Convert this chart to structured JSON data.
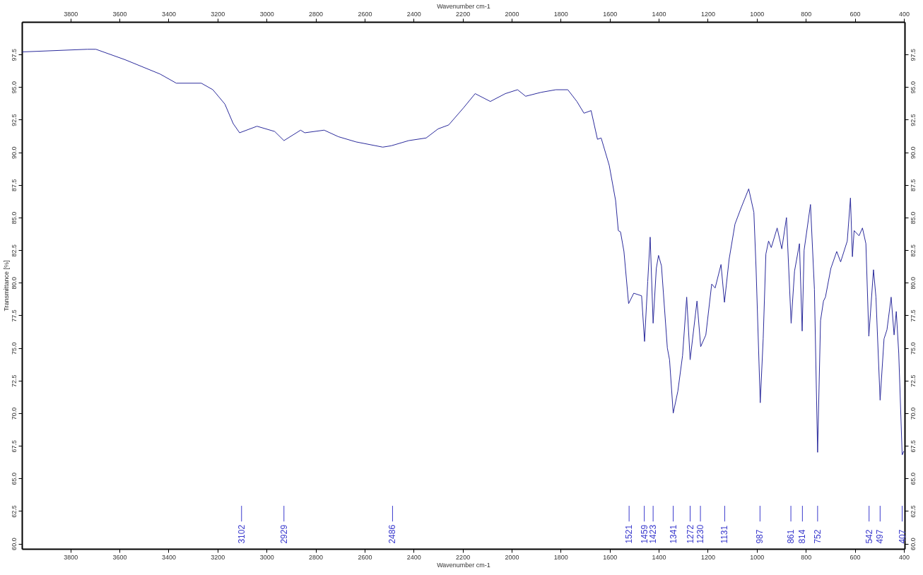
{
  "chart_data": {
    "type": "line",
    "xlabel": "Wavenumber cm-1",
    "x2label": "Wavenumber cm-1",
    "ylabel": "Transmittance [%]",
    "xlim": [
      3998,
      397
    ],
    "xticks": [
      3800,
      3600,
      3400,
      3200,
      3000,
      2800,
      2600,
      2400,
      2200,
      2000,
      1800,
      1600,
      1400,
      1200,
      1000,
      800,
      600,
      400
    ],
    "x2lim": [
      3998,
      397
    ],
    "x2ticks": [
      3800,
      3600,
      3400,
      3200,
      3000,
      2800,
      2600,
      2400,
      2200,
      2000,
      1800,
      1600,
      1400,
      1200,
      1000,
      800,
      600,
      400
    ],
    "ylim": [
      59.6,
      100
    ],
    "yticks": [
      {
        "value": 60,
        "label": "60.0"
      },
      62.5,
      {
        "value": 65,
        "label": "65.0"
      },
      67.5,
      {
        "value": 70,
        "label": "70.0"
      },
      72.5,
      {
        "value": 75,
        "label": "75.0"
      },
      77.5,
      {
        "value": 80,
        "label": "80.0"
      },
      82.5,
      {
        "value": 85,
        "label": "85.0"
      },
      87.5,
      {
        "value": 90,
        "label": "90.0"
      },
      92.5,
      {
        "value": 95,
        "label": "95.0"
      },
      97.5
    ],
    "y2lim": [
      59.6,
      100
    ],
    "y2ticks": [
      {
        "value": 60,
        "label": "60.0"
      },
      62.5,
      {
        "value": 65,
        "label": "65.0"
      },
      67.5,
      {
        "value": 70,
        "label": "70.0"
      },
      72.5,
      {
        "value": 75,
        "label": "75.0"
      },
      77.5,
      {
        "value": 80,
        "label": "80.0"
      },
      82.5,
      {
        "value": 85,
        "label": "85.0"
      },
      87.5,
      {
        "value": 90,
        "label": "90.0"
      },
      92.5,
      {
        "value": 95,
        "label": "95.0"
      },
      97.5
    ],
    "grid": false,
    "line_style": "solid",
    "series": [
      {
        "color": "#2b2b9c",
        "x": [
          3996,
          3731,
          3696,
          3577,
          3434,
          3368,
          3266,
          3219,
          3170,
          3136,
          3110,
          3039,
          2967,
          2929,
          2861,
          2844,
          2765,
          2707,
          2635,
          2526,
          2492,
          2420,
          2349,
          2300,
          2257,
          2197,
          2149,
          2087,
          2026,
          1976,
          1943,
          1880,
          1820,
          1771,
          1734,
          1705,
          1676,
          1650,
          1635,
          1602,
          1576,
          1565,
          1556,
          1542,
          1523,
          1502,
          1470,
          1458,
          1445,
          1435,
          1423,
          1410,
          1401,
          1389,
          1365,
          1356,
          1341,
          1322,
          1303,
          1286,
          1272,
          1244,
          1229,
          1208,
          1184,
          1170,
          1146,
          1132,
          1113,
          1089,
          1065,
          1033,
          1012,
          1003,
          986,
          974,
          963,
          952,
          941,
          917,
          898,
          879,
          860,
          846,
          826,
          815,
          807,
          781,
          765,
          752,
          740,
          728,
          720,
          698,
          674,
          658,
          631,
          618,
          610,
          603,
          583,
          569,
          555,
          543,
          524,
          514,
          497,
          481,
          469,
          452,
          440,
          431,
          421,
          407,
          400
        ],
        "values": [
          97.7,
          97.9,
          97.9,
          97.1,
          96.0,
          95.3,
          95.3,
          94.8,
          93.7,
          92.2,
          91.5,
          92.0,
          91.6,
          90.9,
          91.7,
          91.5,
          91.7,
          91.2,
          90.8,
          90.4,
          90.5,
          90.9,
          91.1,
          91.8,
          92.1,
          93.4,
          94.5,
          93.9,
          94.5,
          94.8,
          94.3,
          94.6,
          94.8,
          94.8,
          93.9,
          93.0,
          93.2,
          91.0,
          91.1,
          89.0,
          86.3,
          84.0,
          83.9,
          82.4,
          78.4,
          79.2,
          79.0,
          75.5,
          80.1,
          83.5,
          76.9,
          81.1,
          82.1,
          81.3,
          75.0,
          74.1,
          70.0,
          71.7,
          74.4,
          78.9,
          74.1,
          78.6,
          75.1,
          76.0,
          79.9,
          79.6,
          81.4,
          78.5,
          81.8,
          84.5,
          85.7,
          87.2,
          85.4,
          81.1,
          70.8,
          75.7,
          82.2,
          83.2,
          82.7,
          84.2,
          82.6,
          85.0,
          76.9,
          80.9,
          83.0,
          76.3,
          82.5,
          86.0,
          79.5,
          67.0,
          77.1,
          78.6,
          78.9,
          81.1,
          82.4,
          81.6,
          83.2,
          86.5,
          82.0,
          84.0,
          83.6,
          84.2,
          83.0,
          75.9,
          81.0,
          78.9,
          71.0,
          75.7,
          76.4,
          78.9,
          76.0,
          77.8,
          74.6,
          66.8,
          67.1
        ]
      }
    ],
    "annotations": [
      {
        "text": "3102",
        "x": 3102
      },
      {
        "text": "2929",
        "x": 2929
      },
      {
        "text": "2486",
        "x": 2486
      },
      {
        "text": "1521",
        "x": 1521
      },
      {
        "text": "1459",
        "x": 1459
      },
      {
        "text": "1423",
        "x": 1423
      },
      {
        "text": "1341",
        "x": 1341
      },
      {
        "text": "1272",
        "x": 1272
      },
      {
        "text": "1230",
        "x": 1230
      },
      {
        "text": "1131",
        "x": 1131
      },
      {
        "text": "987",
        "x": 987
      },
      {
        "text": "861",
        "x": 861
      },
      {
        "text": "814",
        "x": 814
      },
      {
        "text": "752",
        "x": 752
      },
      {
        "text": "542",
        "x": 542
      },
      {
        "text": "497",
        "x": 497
      },
      {
        "text": "407",
        "x": 407
      }
    ]
  }
}
